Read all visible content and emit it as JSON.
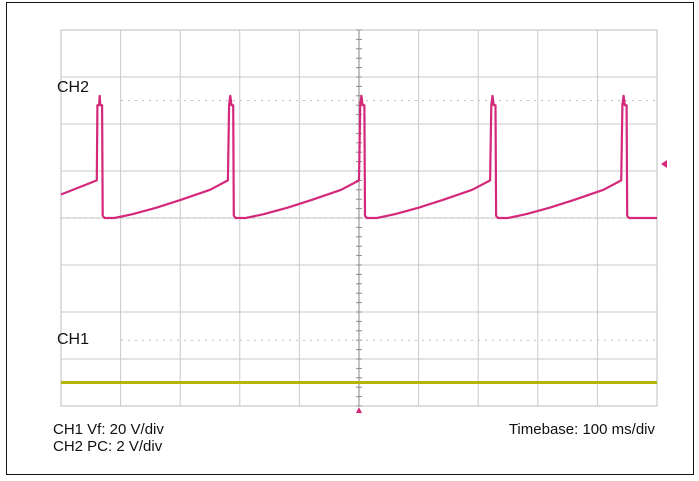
{
  "chart_data": {
    "type": "line",
    "title": "",
    "xlabel": "",
    "ylabel": "",
    "timebase": "Timebase: 100 ms/div",
    "channel_scales": [
      "CH1 Vf: 20 V/div",
      "CH2 PC: 2 V/div"
    ],
    "grid": true,
    "x_divisions": 10,
    "y_divisions": 8,
    "xlim": [
      0,
      1000
    ],
    "series": [
      {
        "name": "CH2",
        "color": "#d4287a",
        "reference_level_div": 0,
        "note_units": "x in ms, y in divisions from CH2 reference",
        "points": [
          [
            0,
            0.5
          ],
          [
            60,
            0.8
          ],
          [
            61,
            2.4
          ],
          [
            64,
            2.4
          ],
          [
            65,
            2.6
          ],
          [
            66,
            2.4
          ],
          [
            69,
            2.4
          ],
          [
            70,
            0.05
          ],
          [
            73,
            0
          ],
          [
            90,
            0
          ],
          [
            120,
            0.08
          ],
          [
            160,
            0.22
          ],
          [
            200,
            0.38
          ],
          [
            250,
            0.6
          ],
          [
            280,
            0.8
          ],
          [
            282,
            2.4
          ],
          [
            284,
            2.6
          ],
          [
            286,
            2.4
          ],
          [
            289,
            2.4
          ],
          [
            290,
            0.05
          ],
          [
            293,
            0
          ],
          [
            310,
            0
          ],
          [
            340,
            0.08
          ],
          [
            380,
            0.22
          ],
          [
            420,
            0.38
          ],
          [
            470,
            0.6
          ],
          [
            500,
            0.8
          ],
          [
            502,
            2.4
          ],
          [
            504,
            2.6
          ],
          [
            506,
            2.4
          ],
          [
            509,
            2.4
          ],
          [
            510,
            0.05
          ],
          [
            513,
            0
          ],
          [
            530,
            0
          ],
          [
            560,
            0.08
          ],
          [
            600,
            0.22
          ],
          [
            640,
            0.38
          ],
          [
            690,
            0.6
          ],
          [
            720,
            0.8
          ],
          [
            722,
            2.4
          ],
          [
            724,
            2.6
          ],
          [
            726,
            2.4
          ],
          [
            729,
            2.4
          ],
          [
            730,
            0.05
          ],
          [
            733,
            0
          ],
          [
            750,
            0
          ],
          [
            780,
            0.08
          ],
          [
            820,
            0.22
          ],
          [
            860,
            0.38
          ],
          [
            910,
            0.6
          ],
          [
            940,
            0.8
          ],
          [
            942,
            2.4
          ],
          [
            944,
            2.6
          ],
          [
            946,
            2.4
          ],
          [
            949,
            2.4
          ],
          [
            950,
            0.05
          ],
          [
            953,
            0
          ],
          [
            1000,
            0
          ]
        ]
      },
      {
        "name": "CH1",
        "color": "#b5b400",
        "reference_level_div": 0,
        "note_units": "x in ms, y in divisions from CH1 reference",
        "points": [
          [
            0,
            0
          ],
          [
            1000,
            0
          ]
        ]
      }
    ]
  },
  "labels": {
    "ch2": "CH2",
    "ch1": "CH1",
    "legend_ch1": "CH1 Vf: 20 V/div",
    "legend_ch2": "CH2 PC: 2 V/div",
    "timebase": "Timebase: 100 ms/div"
  }
}
